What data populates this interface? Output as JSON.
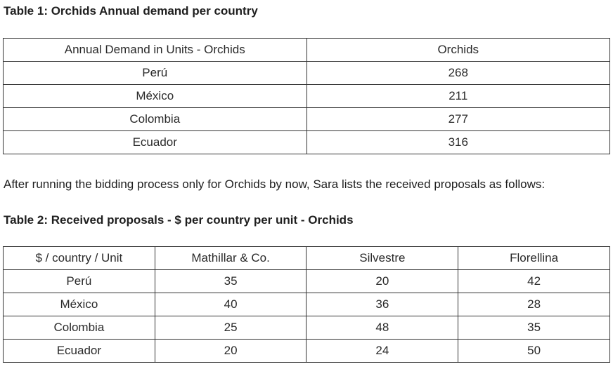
{
  "table1": {
    "title": "Table 1: Orchids Annual demand per country",
    "headers": [
      "Annual Demand in Units - Orchids",
      "Orchids"
    ],
    "rows": [
      [
        "Perú",
        "268"
      ],
      [
        "México",
        "211"
      ],
      [
        "Colombia",
        "277"
      ],
      [
        "Ecuador",
        "316"
      ]
    ]
  },
  "paragraph": "After running the bidding process only for Orchids by now, Sara lists the received proposals as follows:",
  "table2": {
    "title": "Table 2: Received proposals - $ per country per unit - Orchids",
    "headers": [
      "$ / country / Unit",
      "Mathillar & Co.",
      "Silvestre",
      "Florellina"
    ],
    "rows": [
      [
        "Perú",
        "35",
        "20",
        "42"
      ],
      [
        "México",
        "40",
        "36",
        "28"
      ],
      [
        "Colombia",
        "25",
        "48",
        "35"
      ],
      [
        "Ecuador",
        "20",
        "24",
        "50"
      ]
    ]
  }
}
